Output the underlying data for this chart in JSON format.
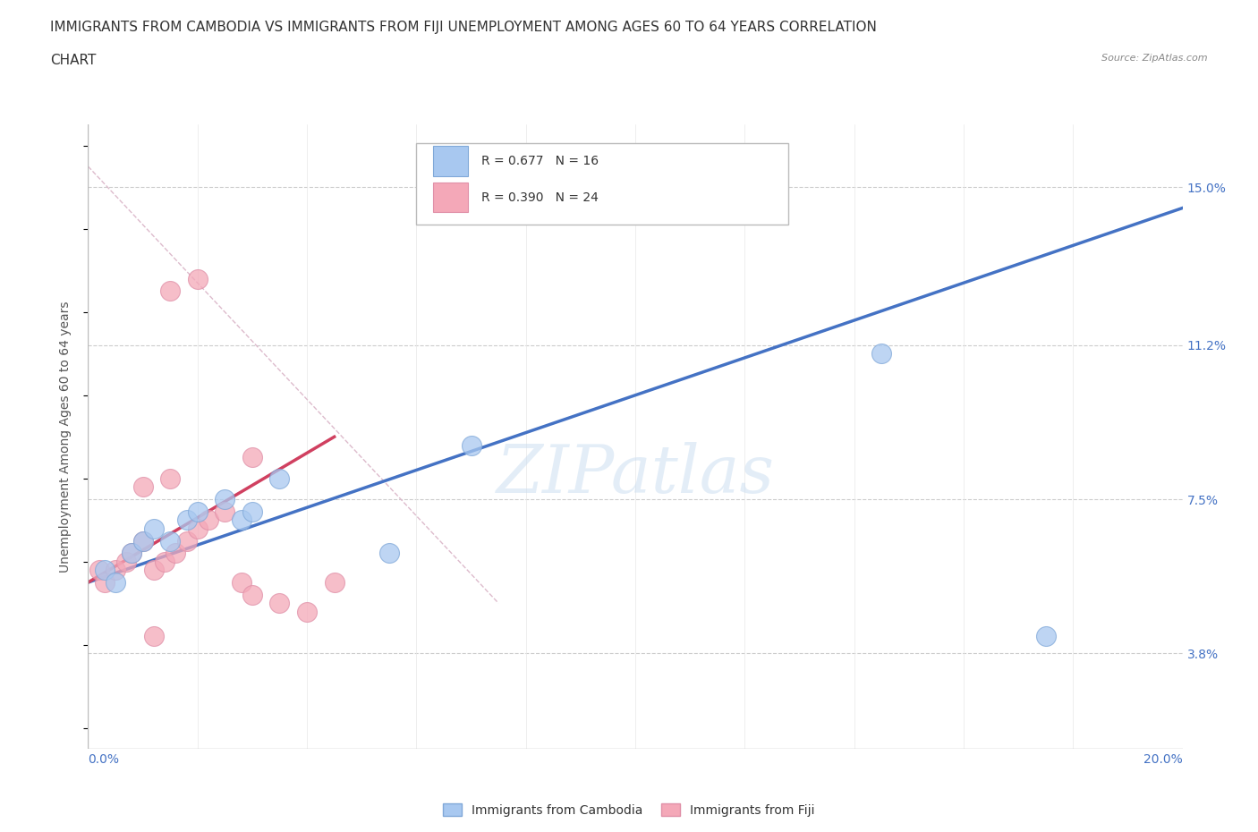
{
  "title_line1": "IMMIGRANTS FROM CAMBODIA VS IMMIGRANTS FROM FIJI UNEMPLOYMENT AMONG AGES 60 TO 64 YEARS CORRELATION",
  "title_line2": "CHART",
  "source_text": "Source: ZipAtlas.com",
  "ylabel_ticks": [
    3.8,
    7.5,
    11.2,
    15.0
  ],
  "ylabel_tick_labels": [
    "3.8%",
    "7.5%",
    "11.2%",
    "15.0%"
  ],
  "xmin": 0.0,
  "xmax": 20.0,
  "ymin": 1.5,
  "ymax": 16.5,
  "watermark": "ZIPatlas",
  "legend_r1": "R = 0.677",
  "legend_n1": "N = 16",
  "legend_r2": "R = 0.390",
  "legend_n2": "N = 24",
  "series1_name": "Immigrants from Cambodia",
  "series2_name": "Immigrants from Fiji",
  "series1_color": "#A8C8F0",
  "series2_color": "#F4A8B8",
  "series1_line_color": "#4472C4",
  "series2_line_color": "#D04060",
  "scatter1_x": [
    0.3,
    0.5,
    0.8,
    1.0,
    1.2,
    1.5,
    1.8,
    2.0,
    2.5,
    2.8,
    3.0,
    3.5,
    5.5,
    14.5,
    17.5,
    7.0
  ],
  "scatter1_y": [
    5.8,
    5.5,
    6.2,
    6.5,
    6.8,
    6.5,
    7.0,
    7.2,
    7.5,
    7.0,
    7.2,
    8.0,
    6.2,
    11.0,
    4.2,
    8.8
  ],
  "scatter2_x": [
    0.2,
    0.3,
    0.5,
    0.7,
    0.8,
    1.0,
    1.2,
    1.4,
    1.6,
    1.8,
    2.0,
    2.2,
    2.5,
    2.8,
    3.0,
    3.5,
    4.0,
    4.5,
    1.5,
    2.0,
    1.5,
    3.0,
    1.0,
    1.2
  ],
  "scatter2_y": [
    5.8,
    5.5,
    5.8,
    6.0,
    6.2,
    6.5,
    5.8,
    6.0,
    6.2,
    6.5,
    6.8,
    7.0,
    7.2,
    5.5,
    5.2,
    5.0,
    4.8,
    5.5,
    12.5,
    12.8,
    8.0,
    8.5,
    7.8,
    4.2
  ],
  "trend1_x": [
    0.0,
    20.0
  ],
  "trend1_y": [
    5.5,
    14.5
  ],
  "trend2_x": [
    0.0,
    4.5
  ],
  "trend2_y": [
    5.5,
    9.0
  ],
  "ref_line_x": [
    0.0,
    7.5
  ],
  "ref_line_y": [
    15.5,
    5.0
  ],
  "background_color": "#FFFFFF",
  "grid_color": "#CCCCCC",
  "title_fontsize": 11,
  "axis_label_fontsize": 10,
  "tick_fontsize": 10
}
